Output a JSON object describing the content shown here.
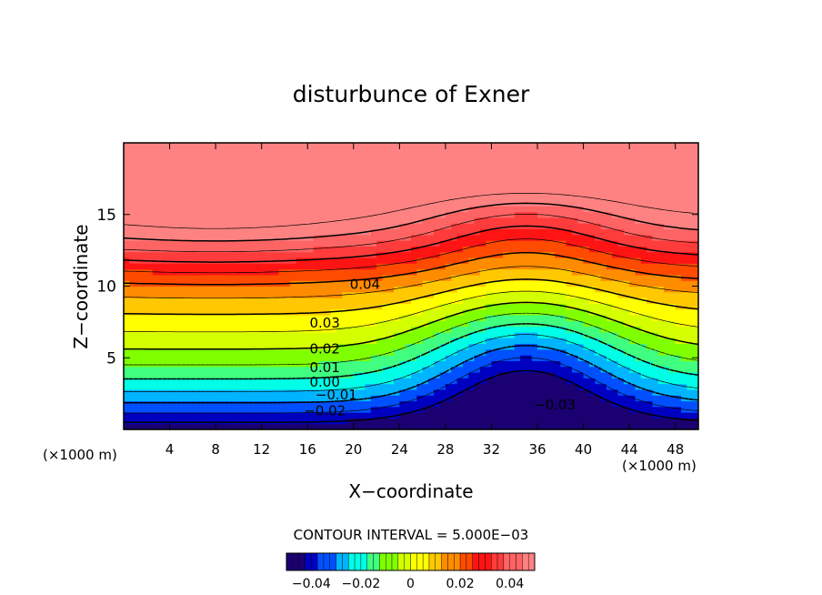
{
  "chart_data": {
    "type": "heatmap",
    "title": "disturbunce of Exner",
    "xlabel": "X−coordinate",
    "ylabel": "Z−coordinate",
    "x_unit": "(×1000 m)",
    "y_unit": "(×1000 m)",
    "xlim": [
      0,
      50
    ],
    "ylim": [
      0,
      20
    ],
    "x_ticks": [
      4,
      8,
      12,
      16,
      20,
      24,
      28,
      32,
      36,
      40,
      44,
      48
    ],
    "y_ticks": [
      5,
      10,
      15
    ],
    "x_tick_labels": [
      "4",
      "8",
      "12",
      "16",
      "20",
      "24",
      "28",
      "32",
      "36",
      "40",
      "44",
      "48"
    ],
    "y_tick_labels": [
      "5",
      "10",
      "15"
    ],
    "contour_interval_text": "CONTOUR INTERVAL = 5.000E−03",
    "contour_levels": [
      -0.03,
      -0.025,
      -0.02,
      -0.015,
      -0.01,
      -0.005,
      0.0,
      0.005,
      0.01,
      0.015,
      0.02,
      0.025,
      0.03,
      0.035,
      0.04,
      0.045
    ],
    "contour_labels": [
      {
        "text": "0.04",
        "x": 21,
        "z": 9.8
      },
      {
        "text": "0.03",
        "x": 17.5,
        "z": 7.1
      },
      {
        "text": "0.02",
        "x": 17.5,
        "z": 5.3
      },
      {
        "text": "0.01",
        "x": 17.5,
        "z": 4.0
      },
      {
        "text": "0.00",
        "x": 17.5,
        "z": 3.0
      },
      {
        "text": "−0.01",
        "x": 18.5,
        "z": 2.1
      },
      {
        "text": "−0.02",
        "x": 17.5,
        "z": 1.0
      },
      {
        "text": "−0.03",
        "x": 37.5,
        "z": 1.4
      }
    ],
    "field": {
      "description": "Exner pressure disturbance field z(x,y); values range about -0.035 to 0.048",
      "x_range": [
        0,
        50
      ],
      "z_range": [
        0,
        20
      ],
      "max_value": 0.048,
      "min_value": -0.035
    },
    "colorbar": {
      "range": [
        -0.05,
        0.05
      ],
      "tick_values": [
        -0.04,
        -0.02,
        0,
        0.02,
        0.04
      ],
      "tick_labels": [
        "−0.04",
        "−0.02",
        "0",
        "0.02",
        "0.04"
      ]
    },
    "palette": [
      "#1a0070",
      "#0000c0",
      "#0050ff",
      "#00b4ff",
      "#00ffe6",
      "#40ff80",
      "#80ff00",
      "#d4ff00",
      "#ffff00",
      "#ffc800",
      "#ff8c00",
      "#ff4b00",
      "#ff1414",
      "#ff3c3c",
      "#ff6464",
      "#ff8282"
    ]
  }
}
